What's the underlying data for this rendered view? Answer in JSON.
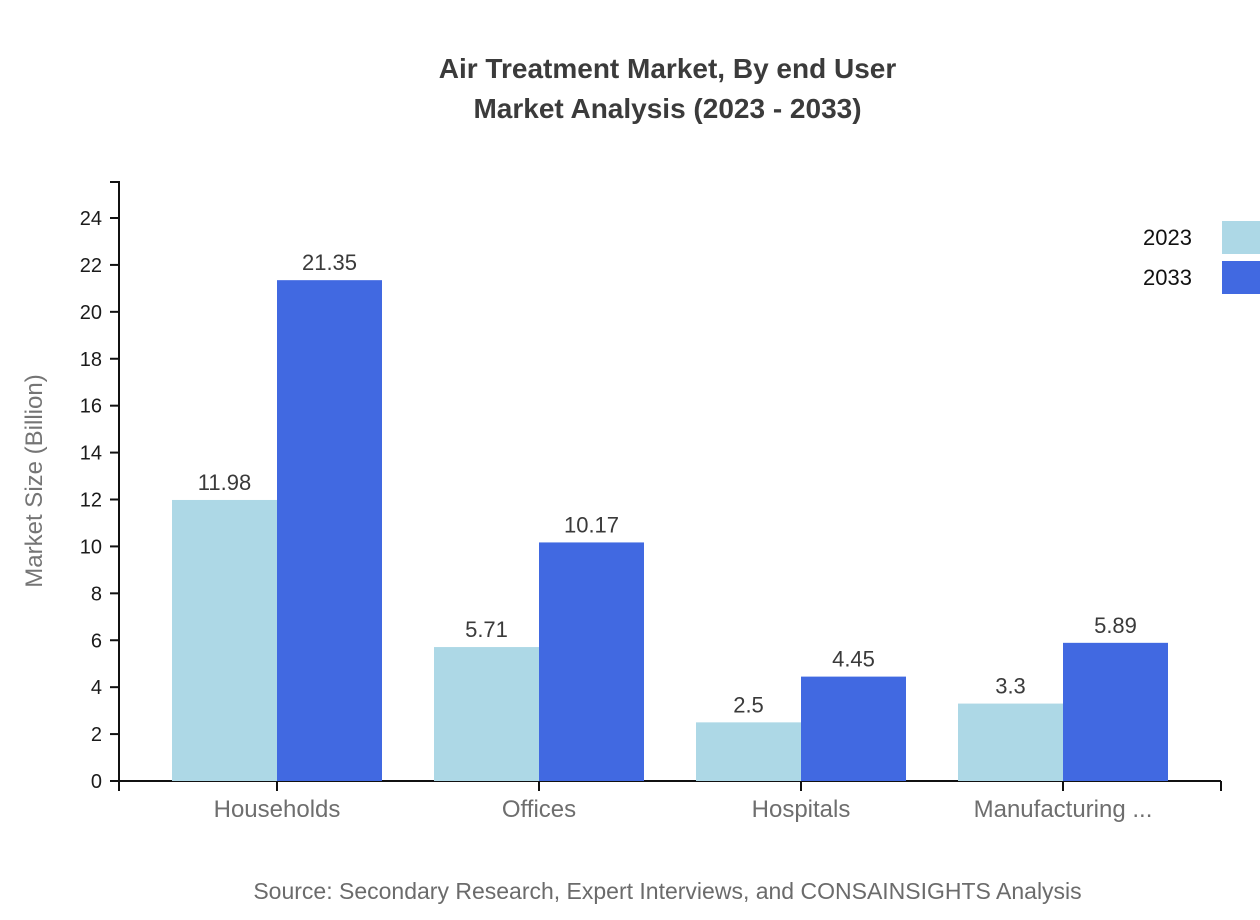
{
  "chart_data": {
    "type": "bar",
    "title": "Air Treatment Market, By end User",
    "subtitle": "Market Analysis (2023 - 2033)",
    "ylabel": "Market Size (Billion)",
    "xlabel": "",
    "categories": [
      "Households",
      "Offices",
      "Hospitals",
      "Manufacturing ..."
    ],
    "series": [
      {
        "name": "2023",
        "color": "#ADD8E6",
        "values": [
          11.98,
          5.71,
          2.5,
          3.3
        ]
      },
      {
        "name": "2033",
        "color": "#4169E1",
        "values": [
          21.35,
          10.17,
          4.45,
          5.89
        ]
      }
    ],
    "ylim": [
      0,
      24
    ],
    "ytick_step": 2,
    "grid": false,
    "bar_value_labels": true,
    "legend_position": "top-right",
    "source": "Source: Secondary Research, Expert Interviews, and CONSAINSIGHTS Analysis"
  }
}
